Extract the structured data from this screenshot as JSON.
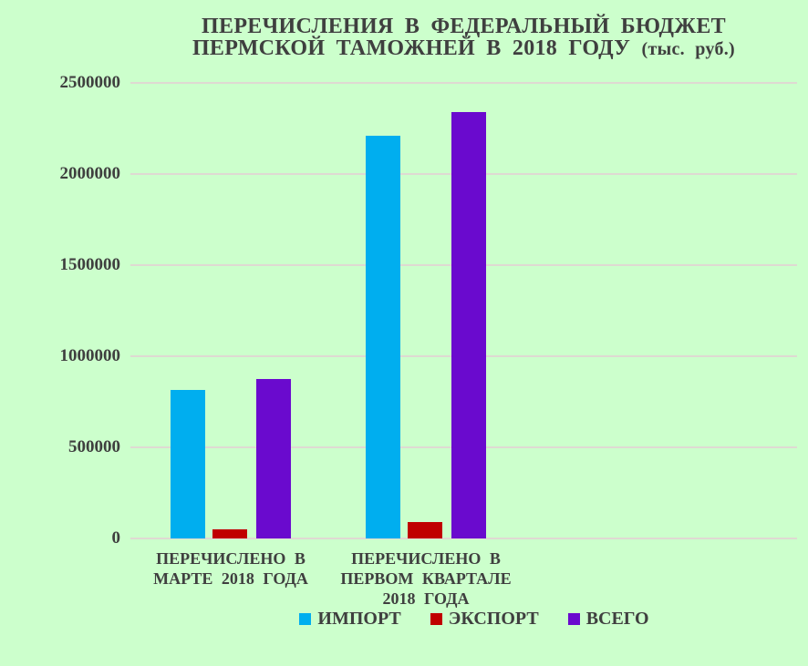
{
  "title": {
    "line1": "ПЕРЕЧИСЛЕНИЯ В ФЕДЕРАЛЬНЫЙ БЮДЖЕТ",
    "line2_main": "ПЕРМСКОЙ ТАМОЖНЕЙ В 2018 ГОДУ",
    "line2_unit": "(тыс. руб.)"
  },
  "colors": {
    "background": "#CCFFCC",
    "text": "#3F3F3F",
    "gridline": "#DFD9D2",
    "import": "#00AEEF",
    "export": "#C00000",
    "total": "#6A0ACE"
  },
  "chart_data": {
    "type": "bar",
    "title": "ПЕРЕЧИСЛЕНИЯ В ФЕДЕРАЛЬНЫЙ БЮДЖЕТ ПЕРМСКОЙ ТАМОЖНЕЙ В 2018 ГОДУ (тыс. руб.)",
    "categories": [
      "ПЕРЕЧИСЛЕНО В МАРТЕ 2018 ГОДА",
      "ПЕРЕЧИСЛЕНО В ПЕРВОМ КВАРТАЛЕ 2018 ГОДА"
    ],
    "categories_lines": [
      [
        "ПЕРЕЧИСЛЕНО В",
        "МАРТЕ 2018 ГОДА"
      ],
      [
        "ПЕРЕЧИСЛЕНО В",
        "ПЕРВОМ КВАРТАЛЕ",
        "2018 ГОДА"
      ]
    ],
    "series": [
      {
        "name": "ИМПОРТ",
        "color": "#00AEEF",
        "values": [
          815000,
          2210000
        ]
      },
      {
        "name": "ЭКСПОРТ",
        "color": "#C00000",
        "values": [
          52000,
          88000
        ]
      },
      {
        "name": "ВСЕГО",
        "color": "#6A0ACE",
        "values": [
          874000,
          2340000
        ]
      }
    ],
    "xlabel": "",
    "ylabel": "",
    "ylim": [
      0,
      2500000
    ],
    "ytick_step": 500000,
    "yticks": [
      "2500000",
      "2000000",
      "1500000",
      "1000000",
      "500000",
      "0"
    ],
    "grid": true,
    "legend_position": "bottom"
  }
}
